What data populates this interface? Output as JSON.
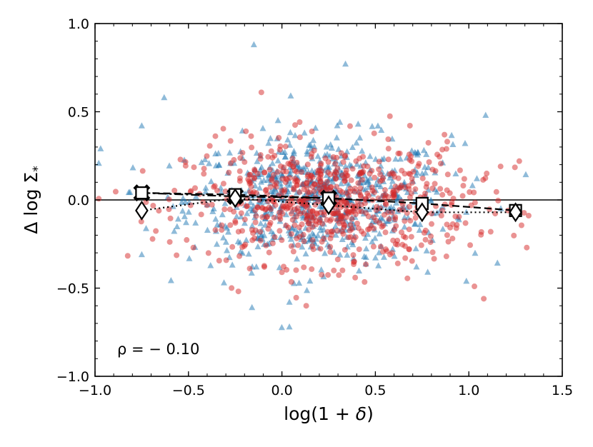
{
  "chart_data": {
    "type": "scatter",
    "title": "",
    "xlabel": "log(1 + δ)",
    "ylabel": "Δ log Σ*",
    "xlim": [
      -1.0,
      1.5
    ],
    "ylim": [
      -1.0,
      1.0
    ],
    "xticks": [
      -1.0,
      -0.5,
      0.0,
      0.5,
      1.0,
      1.5
    ],
    "yticks": [
      -1.0,
      -0.5,
      0.0,
      0.5,
      1.0
    ],
    "xtick_labels": [
      "−1.0",
      "−0.5",
      "0.0",
      "0.5",
      "1.0",
      "1.5"
    ],
    "ytick_labels": [
      "−1.0",
      "−0.5",
      "0.0",
      "0.5",
      "1.0"
    ],
    "reference_line_y": 0.0,
    "annotation": "ρ = − 0.10",
    "series": [
      {
        "name": "blue triangles",
        "marker": "triangle",
        "color": "#1f77b4",
        "alpha": 0.5,
        "n_points": 700,
        "x_center": 0.2,
        "x_spread": 0.35,
        "y_center": 0.0,
        "y_spread": 0.18,
        "outliers": [
          {
            "x": -0.15,
            "y": 0.88
          },
          {
            "x": 0.34,
            "y": 0.77
          },
          {
            "x": 0.04,
            "y": -0.72
          },
          {
            "x": -0.63,
            "y": 0.58
          },
          {
            "x": 1.09,
            "y": 0.48
          },
          {
            "x": -0.97,
            "y": 0.29
          },
          {
            "x": -0.75,
            "y": 0.42
          },
          {
            "x": 0.78,
            "y": -0.41
          },
          {
            "x": 0.72,
            "y": -0.38
          },
          {
            "x": -0.31,
            "y": -0.47
          },
          {
            "x": 0.04,
            "y": -0.58
          },
          {
            "x": 0.15,
            "y": -0.46
          },
          {
            "x": -0.75,
            "y": -0.31
          },
          {
            "x": 0.86,
            "y": 0.21
          },
          {
            "x": 0.98,
            "y": 0.32
          }
        ]
      },
      {
        "name": "red circles",
        "marker": "circle",
        "color": "#d62728",
        "alpha": 0.5,
        "n_points": 700,
        "x_center": 0.25,
        "x_spread": 0.38,
        "y_center": -0.02,
        "y_spread": 0.17,
        "outliers": [
          {
            "x": -0.11,
            "y": 0.61
          },
          {
            "x": 1.03,
            "y": -0.49
          },
          {
            "x": 1.08,
            "y": -0.56
          },
          {
            "x": 0.13,
            "y": -0.6
          },
          {
            "x": 1.31,
            "y": -0.27
          },
          {
            "x": 1.27,
            "y": 0.22
          },
          {
            "x": 1.17,
            "y": 0.19
          },
          {
            "x": 1.21,
            "y": -0.06
          },
          {
            "x": 0.62,
            "y": -0.36
          },
          {
            "x": 0.88,
            "y": -0.32
          },
          {
            "x": 0.0,
            "y": -0.41
          }
        ]
      }
    ],
    "binned_lines": [
      {
        "name": "dash-dot crosses",
        "style": "dashdot",
        "marker": "x",
        "x": [
          -0.75,
          -0.25,
          0.25
        ],
        "y": [
          0.04,
          0.02,
          0.01
        ]
      },
      {
        "name": "dashed squares",
        "style": "dashed",
        "marker": "square",
        "x": [
          -0.75,
          -0.25,
          0.25,
          0.75,
          1.25
        ],
        "y": [
          0.04,
          0.03,
          0.01,
          -0.02,
          -0.06
        ]
      },
      {
        "name": "dotted diamonds",
        "style": "dotted",
        "marker": "diamond",
        "x": [
          -0.75,
          -0.25,
          0.25,
          0.75,
          1.25
        ],
        "y": [
          -0.06,
          0.01,
          -0.03,
          -0.07,
          -0.07
        ]
      }
    ]
  }
}
